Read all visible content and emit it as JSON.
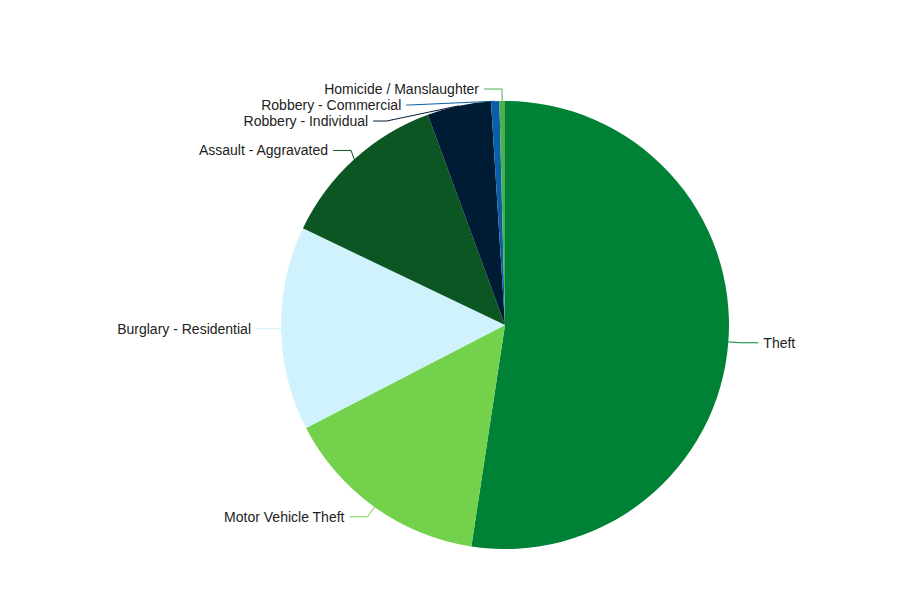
{
  "chart_data": {
    "type": "pie",
    "categories": [
      "Theft",
      "Motor Vehicle Theft",
      "Burglary - Residential",
      "Assault - Aggravated",
      "Robbery - Individual",
      "Robbery - Commercial",
      "Homicide / Manslaughter"
    ],
    "values": [
      52.4,
      15.0,
      14.7,
      12.3,
      4.6,
      0.6,
      0.4
    ],
    "colors": [
      "#008236",
      "#74d14c",
      "#cff2fd",
      "#0b5622",
      "#001c35",
      "#0a5fa8",
      "#4caf50"
    ]
  }
}
